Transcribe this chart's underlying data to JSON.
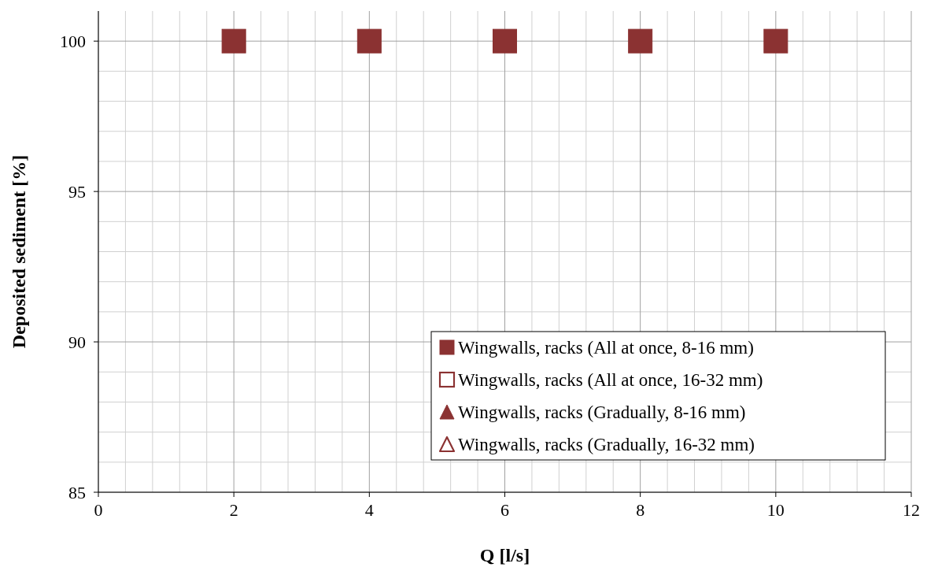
{
  "chart_data": {
    "type": "scatter",
    "xlabel": "Q [l/s]",
    "ylabel": "Deposited sediment [%]",
    "x": [
      2,
      4,
      6,
      8,
      10
    ],
    "xlim": [
      0,
      12
    ],
    "xticks": [
      0,
      2,
      4,
      6,
      8,
      10,
      12
    ],
    "ylim": [
      85,
      101
    ],
    "yticks": [
      85,
      90,
      95,
      100
    ],
    "grid": true,
    "legend": "bottom right",
    "series": [
      {
        "name": "Wingwalls, racks (All at once, 8-16 mm)",
        "color": "#8b3232",
        "marker": "square",
        "values": [
          100,
          100,
          100,
          100,
          100
        ]
      },
      {
        "name": "Wingwalls, racks (All at once, 16-32 mm)",
        "color": "#8b3232",
        "marker": "square-open",
        "values": [
          null,
          null,
          null,
          null,
          null
        ]
      },
      {
        "name": "Wingwalls, racks (Gradually, 8-16 mm)",
        "color": "#8b3232",
        "marker": "triangle",
        "values": [
          null,
          null,
          null,
          null,
          null
        ]
      },
      {
        "name": "Wingwalls, racks (Gradually, 16-32 mm)",
        "color": "#8b3232",
        "marker": "triangle-open",
        "values": [
          null,
          null,
          null,
          null,
          null
        ]
      }
    ]
  }
}
